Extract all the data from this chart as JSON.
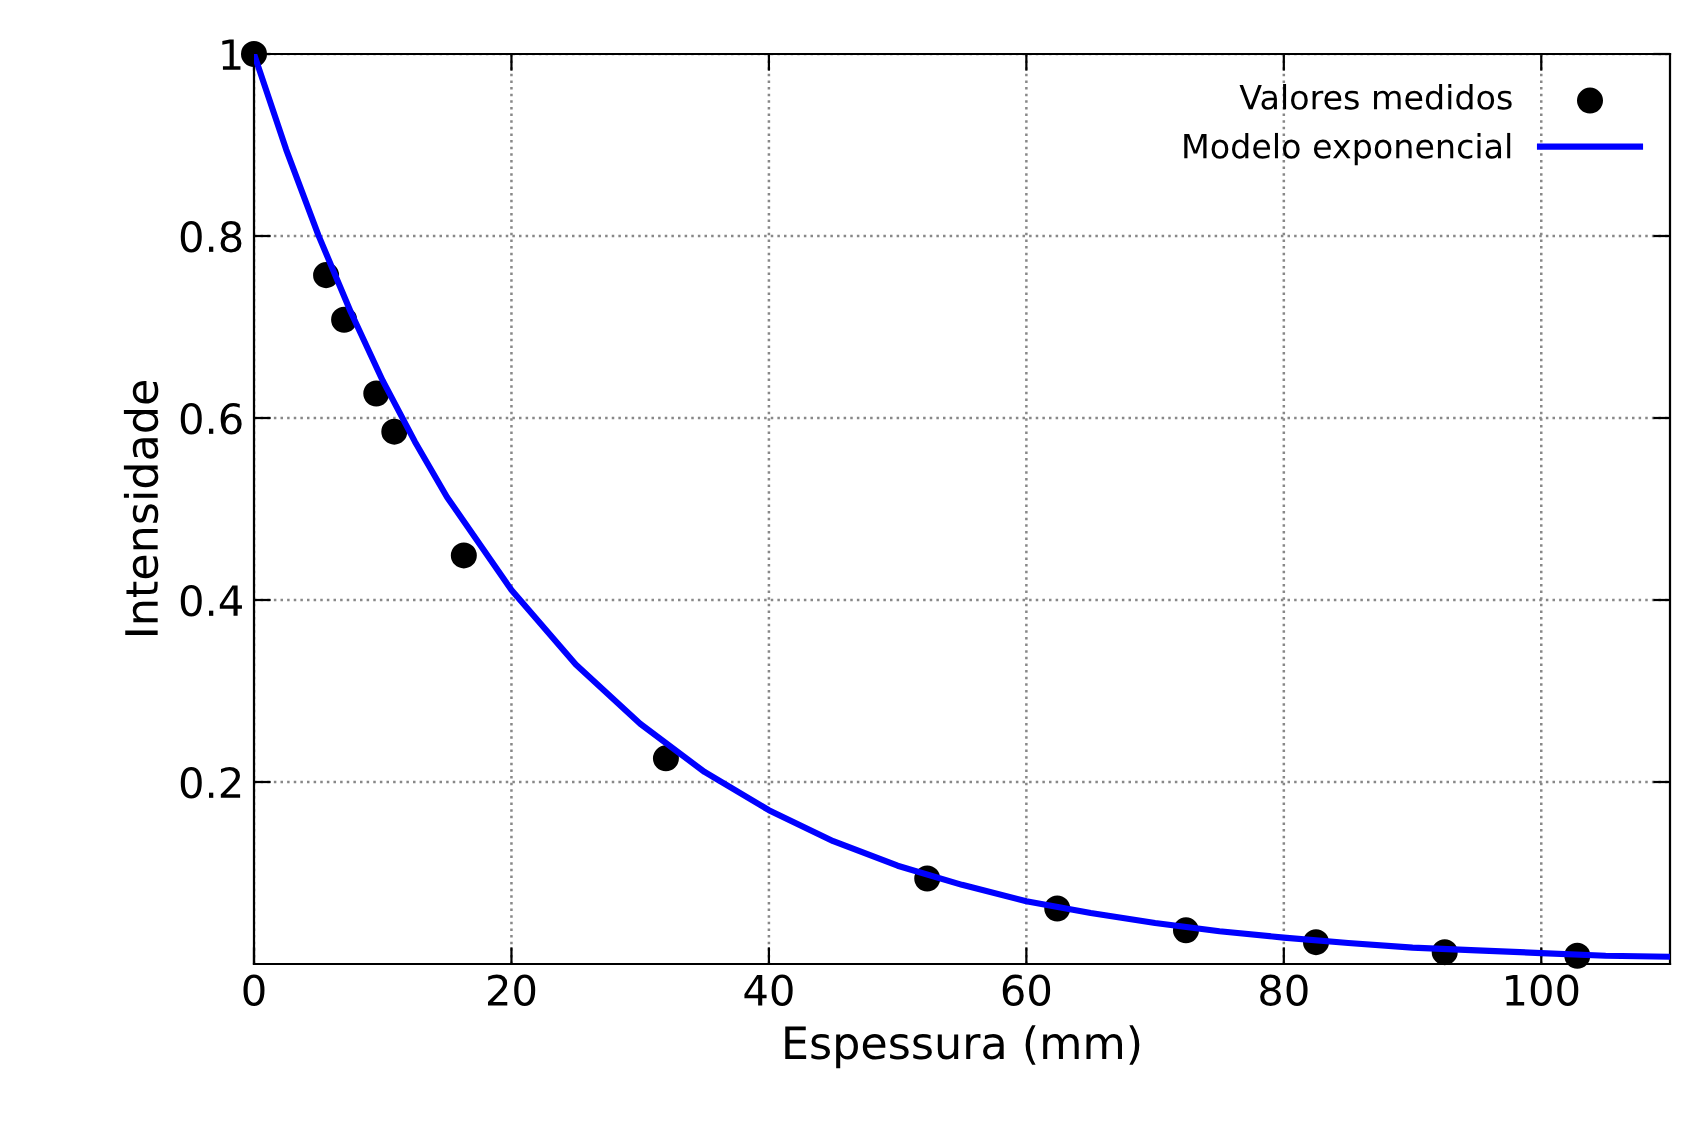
{
  "chart_data": {
    "type": "scatter",
    "xlabel": "Espessura (mm)",
    "ylabel": "Intensidade",
    "xlim": [
      0,
      110
    ],
    "ylim": [
      0,
      1
    ],
    "xticks": [
      0,
      20,
      40,
      60,
      80,
      100
    ],
    "yticks": [
      0.2,
      0.4,
      0.6,
      0.8,
      1
    ],
    "grid": true,
    "legend": "top right",
    "series": [
      {
        "name": "Valores medidos",
        "color": "#000000",
        "marker": "circle",
        "x": [
          0,
          5.6,
          7.0,
          9.5,
          10.9,
          16.3,
          32.0,
          52.3,
          62.4,
          72.4,
          82.5,
          92.5,
          102.8
        ],
        "values": [
          1,
          0.757,
          0.708,
          0.627,
          0.585,
          0.449,
          0.226,
          0.094,
          0.061,
          0.037,
          0.024,
          0.013,
          0.009
        ]
      },
      {
        "name": "Modelo exponencial",
        "type": "line",
        "color": "#0000ff",
        "line_style": "solid",
        "x": [
          0,
          2.5,
          5,
          7.5,
          10,
          12.5,
          15,
          20,
          25,
          30,
          35,
          40,
          45,
          50,
          55,
          60,
          65,
          70,
          75,
          80,
          85,
          90,
          95,
          100,
          105,
          110
        ],
        "values": [
          1,
          0.895,
          0.801,
          0.717,
          0.641,
          0.574,
          0.513,
          0.411,
          0.329,
          0.264,
          0.211,
          0.169,
          0.135,
          0.108,
          0.087,
          0.069,
          0.056,
          0.045,
          0.036,
          0.029,
          0.023,
          0.018,
          0.015,
          0.012,
          0.009,
          0.008
        ]
      }
    ]
  }
}
